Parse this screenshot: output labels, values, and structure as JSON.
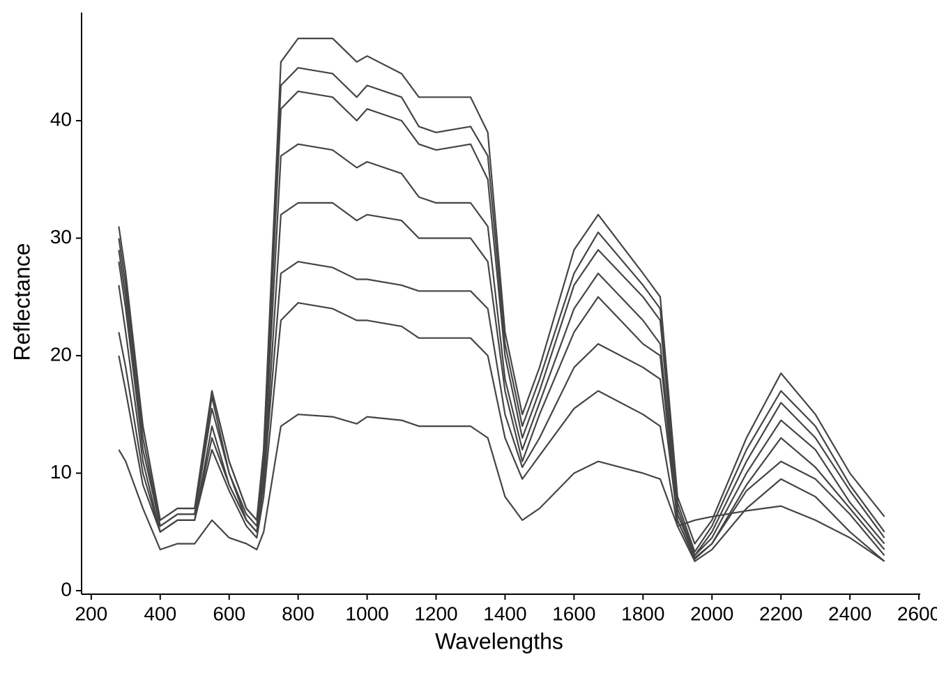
{
  "chart_data": {
    "type": "line",
    "x_label": "Wavelengths",
    "y_label": "Reflectance",
    "x": [
      280,
      300,
      350,
      400,
      450,
      500,
      550,
      600,
      650,
      680,
      700,
      750,
      800,
      900,
      970,
      1000,
      1100,
      1150,
      1200,
      1300,
      1350,
      1400,
      1450,
      1500,
      1600,
      1670,
      1800,
      1850,
      1900,
      1950,
      2000,
      2100,
      2200,
      2300,
      2400,
      2500
    ],
    "series": [
      {
        "color": "#444444",
        "values": [
          30,
          26,
          14,
          6,
          7,
          7,
          17,
          11,
          7,
          6,
          12,
          45,
          47,
          47,
          45,
          45.5,
          44,
          42,
          42,
          42,
          39,
          22,
          15,
          19,
          29,
          32,
          27,
          25,
          8,
          4,
          6,
          13,
          18.5,
          15,
          10,
          6.3
        ]
      },
      {
        "color": "#444444",
        "values": [
          31,
          27,
          14,
          6,
          7,
          7,
          17,
          11,
          7,
          6,
          12,
          43,
          44.5,
          44,
          42,
          43,
          42,
          39.5,
          39,
          39.5,
          37,
          21,
          14,
          18,
          27,
          30.5,
          26,
          24,
          7.5,
          3.3,
          5.5,
          12,
          17,
          14,
          9,
          5
        ]
      },
      {
        "color": "#444444",
        "values": [
          29,
          25,
          13,
          5.5,
          6.5,
          6.5,
          16.5,
          10,
          6.5,
          5.5,
          11,
          41,
          42.5,
          42,
          40,
          41,
          40,
          38,
          37.5,
          38,
          35,
          20,
          13,
          17,
          26,
          29,
          25,
          23,
          7,
          3,
          5,
          11,
          16,
          13,
          8.5,
          4.5
        ]
      },
      {
        "color": "#444444",
        "values": [
          28,
          24,
          12,
          5.5,
          6.5,
          6.5,
          15.5,
          10,
          6,
          5,
          10,
          37,
          38,
          37.5,
          36,
          36.5,
          35.5,
          33.5,
          33,
          33,
          31,
          18,
          12,
          16,
          24,
          27,
          23,
          21,
          6.5,
          3,
          4.5,
          10,
          14.5,
          12,
          7.5,
          4
        ]
      },
      {
        "color": "#444444",
        "values": [
          26,
          22,
          11,
          5,
          6,
          6,
          14,
          9,
          6,
          5,
          9,
          32,
          33,
          33,
          31.5,
          32,
          31.5,
          30,
          30,
          30,
          28,
          17,
          11,
          15,
          22,
          25,
          21,
          20,
          6,
          2.8,
          4,
          9,
          13,
          10.5,
          7,
          3.5
        ]
      },
      {
        "color": "#444444",
        "values": [
          22,
          19,
          10,
          5,
          6,
          6,
          13,
          9,
          6,
          5,
          9,
          27,
          28,
          27.5,
          26.5,
          26.5,
          26,
          25.5,
          25.5,
          25.5,
          24,
          15,
          10.5,
          13,
          19,
          21,
          19,
          18,
          6,
          2.7,
          4,
          8.5,
          11,
          9.5,
          6.5,
          3
        ]
      },
      {
        "color": "#444444",
        "values": [
          20,
          17,
          9,
          5,
          6,
          6,
          12,
          8.5,
          5.5,
          4.5,
          8,
          23,
          24.5,
          24,
          23,
          23,
          22.5,
          21.5,
          21.5,
          21.5,
          20,
          13,
          9.5,
          11.5,
          15.5,
          17,
          15,
          14,
          5.5,
          2.5,
          3.5,
          7,
          9.5,
          8,
          5,
          2.5
        ]
      },
      {
        "color": "#444444",
        "values": [
          12,
          11,
          7,
          3.5,
          4,
          4,
          6,
          4.5,
          4,
          3.5,
          5,
          14,
          15,
          14.8,
          14.2,
          14.8,
          14.5,
          14,
          14,
          14,
          13,
          8,
          6,
          7,
          10,
          11,
          10,
          9.5,
          5.5,
          6,
          6.3,
          6.8,
          7.2,
          6,
          4.5,
          2.5
        ]
      }
    ],
    "xlim": [
      172,
      2604
    ],
    "ylim": [
      -0.3,
      49.2
    ],
    "xticks": [
      200,
      400,
      600,
      800,
      1000,
      1200,
      1400,
      1600,
      1800,
      2000,
      2200,
      2400,
      2600
    ],
    "yticks": [
      0,
      10,
      20,
      30,
      40
    ],
    "grid": false
  }
}
